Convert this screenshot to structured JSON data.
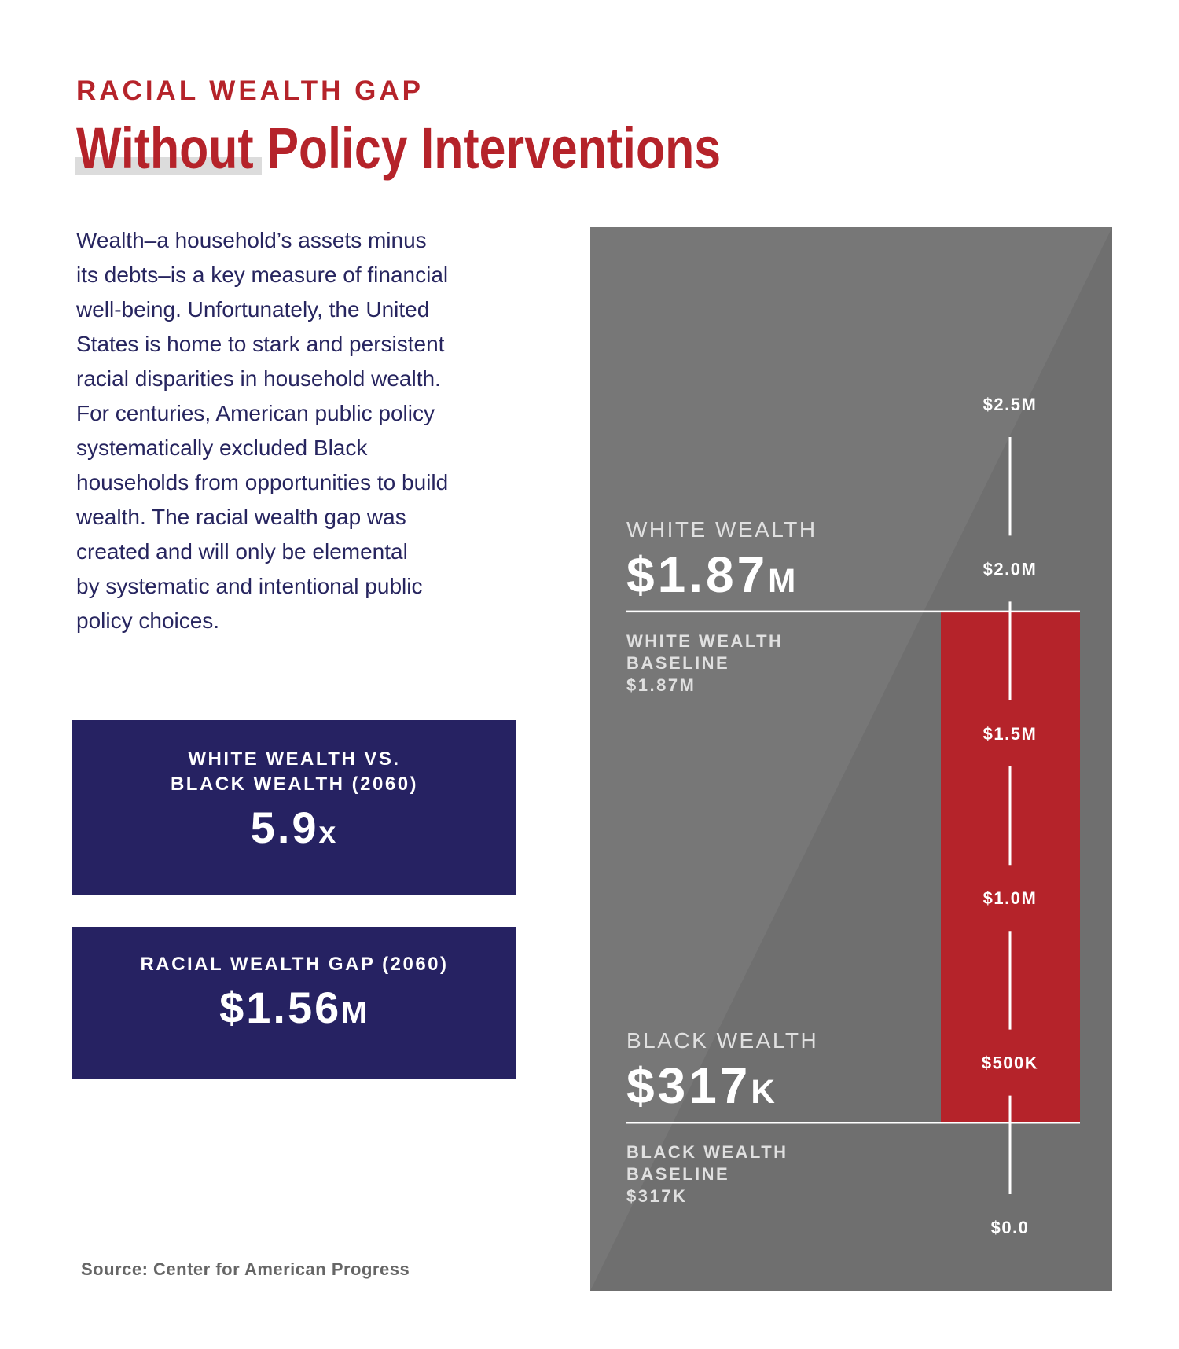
{
  "header": {
    "kicker": "RACIAL WEALTH GAP",
    "title": "Without Policy Interventions"
  },
  "body": {
    "lines": [
      "Wealth–a household’s assets minus",
      "its debts–is a key measure of financial",
      "well-being. Unfortunately, the United",
      "States is home to stark and persistent",
      "racial disparities in household wealth.",
      "For centuries, American public policy",
      "systematically excluded Black",
      "households from opportunities to build",
      "wealth. The racial wealth gap was",
      "created and will only be elemental",
      "by systematic and intentional public",
      "policy choices."
    ]
  },
  "stats": [
    {
      "label_lines": [
        "WHITE WEALTH VS.",
        "BLACK WEALTH (2060)"
      ],
      "value": "5.9x"
    },
    {
      "label_lines": [
        "RACIAL WEALTH GAP (2060)"
      ],
      "value": "$1.56M"
    }
  ],
  "source": "Source: Center for American Progress",
  "chart_data": {
    "type": "range_bar",
    "color": "#b5232a",
    "series": [
      {
        "name": "WHITE WEALTH",
        "values": [
          1870000
        ],
        "value_labels": [
          "$1.87M"
        ],
        "baseline_label": [
          "WHITE WEALTH",
          "BASELINE"
        ]
      },
      {
        "name": "BLACK WEALTH",
        "values": [
          317000
        ],
        "value_labels": [
          "$317K"
        ],
        "baseline_label": [
          "BLACK WEALTH",
          "BASELINE"
        ]
      }
    ],
    "ylim": [
      0,
      2500000
    ],
    "yticks": [
      {
        "value": 0,
        "label": "$0.0"
      },
      {
        "value": 500000,
        "label": "$500K"
      },
      {
        "value": 1000000,
        "label": "$1.0M"
      },
      {
        "value": 1500000,
        "label": "$1.5M"
      },
      {
        "value": 2000000,
        "label": "$2.0M"
      },
      {
        "value": 2500000,
        "label": "$2.5M"
      }
    ]
  }
}
